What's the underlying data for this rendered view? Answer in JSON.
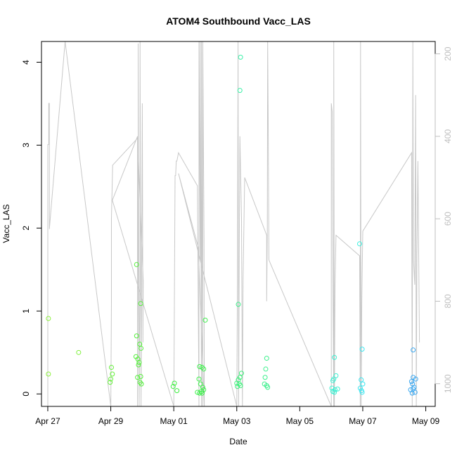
{
  "chart_data": {
    "type": "scatter",
    "title": "ATOM4 Southbound Vacc_LAS",
    "xlabel": "Date",
    "ylabel": "Vacc_LAS",
    "xlim": [
      -0.2,
      12.3
    ],
    "ylim": [
      -0.15,
      4.25
    ],
    "x_unit": "days since Apr 27",
    "x_ticks": [
      {
        "value": 0,
        "label": "Apr 27"
      },
      {
        "value": 2,
        "label": "Apr 29"
      },
      {
        "value": 4,
        "label": "May 01"
      },
      {
        "value": 6,
        "label": "May 03"
      },
      {
        "value": 8,
        "label": "May 05"
      },
      {
        "value": 10,
        "label": "May 07"
      },
      {
        "value": 12,
        "label": "May 09"
      }
    ],
    "y_ticks": [
      {
        "value": 0,
        "label": "0"
      },
      {
        "value": 1,
        "label": "1"
      },
      {
        "value": 2,
        "label": "2"
      },
      {
        "value": 3,
        "label": "3"
      },
      {
        "value": 4,
        "label": "4"
      }
    ],
    "secondary_axis": {
      "side": "right",
      "reversed": true,
      "color": "#bfbfbf",
      "ylim": [
        1055,
        170
      ],
      "ticks": [
        {
          "value": 200,
          "label": "200"
        },
        {
          "value": 400,
          "label": "400"
        },
        {
          "value": 600,
          "label": "600"
        },
        {
          "value": 800,
          "label": "800"
        },
        {
          "value": 1000,
          "label": "1000"
        }
      ]
    },
    "series": [
      {
        "name": "Vacc_LAS",
        "mark": "open-circle",
        "colored_by": "time",
        "points": [
          {
            "x": 0.02,
            "y": 0.91,
            "color": "#8cf03c"
          },
          {
            "x": 0.02,
            "y": 0.24,
            "color": "#8cf03c"
          },
          {
            "x": 0.98,
            "y": 0.5,
            "color": "#7ff03c"
          },
          {
            "x": 2.02,
            "y": 0.32,
            "color": "#66f03c"
          },
          {
            "x": 2.05,
            "y": 0.24,
            "color": "#66f03c"
          },
          {
            "x": 2.0,
            "y": 0.18,
            "color": "#66f03c"
          },
          {
            "x": 1.98,
            "y": 0.14,
            "color": "#66f03c"
          },
          {
            "x": 2.82,
            "y": 1.56,
            "color": "#55f03c"
          },
          {
            "x": 2.82,
            "y": 0.7,
            "color": "#55f03c"
          },
          {
            "x": 2.8,
            "y": 0.45,
            "color": "#55f03c"
          },
          {
            "x": 2.86,
            "y": 0.42,
            "color": "#55f03c"
          },
          {
            "x": 2.9,
            "y": 0.38,
            "color": "#55f03c"
          },
          {
            "x": 2.88,
            "y": 0.35,
            "color": "#55f03c"
          },
          {
            "x": 2.92,
            "y": 0.6,
            "color": "#55f03c"
          },
          {
            "x": 2.96,
            "y": 0.55,
            "color": "#55f03c"
          },
          {
            "x": 2.95,
            "y": 1.09,
            "color": "#55f03c"
          },
          {
            "x": 2.85,
            "y": 0.2,
            "color": "#55f03c"
          },
          {
            "x": 2.95,
            "y": 0.21,
            "color": "#55f03c"
          },
          {
            "x": 2.93,
            "y": 0.14,
            "color": "#55f03c"
          },
          {
            "x": 2.97,
            "y": 0.12,
            "color": "#55f03c"
          },
          {
            "x": 4.02,
            "y": 0.13,
            "color": "#3cf03f"
          },
          {
            "x": 3.98,
            "y": 0.09,
            "color": "#3cf03f"
          },
          {
            "x": 4.1,
            "y": 0.04,
            "color": "#3cf03f"
          },
          {
            "x": 4.82,
            "y": 0.33,
            "color": "#3cf04a"
          },
          {
            "x": 4.95,
            "y": 0.3,
            "color": "#3cf04a"
          },
          {
            "x": 4.9,
            "y": 0.32,
            "color": "#3cf04a"
          },
          {
            "x": 4.8,
            "y": 0.18,
            "color": "#3cf04a"
          },
          {
            "x": 4.85,
            "y": 0.12,
            "color": "#3cf04a"
          },
          {
            "x": 4.92,
            "y": 0.08,
            "color": "#3cf04a"
          },
          {
            "x": 4.75,
            "y": 0.02,
            "color": "#3cf04a"
          },
          {
            "x": 4.82,
            "y": 0.01,
            "color": "#3cf04a"
          },
          {
            "x": 4.88,
            "y": 0.03,
            "color": "#3cf04a"
          },
          {
            "x": 4.95,
            "y": 0.05,
            "color": "#3cf04a"
          },
          {
            "x": 4.9,
            "y": 0.01,
            "color": "#3cf04a"
          },
          {
            "x": 5.0,
            "y": 0.89,
            "color": "#3cf04a"
          },
          {
            "x": 6.12,
            "y": 4.06,
            "color": "#3cf0a8"
          },
          {
            "x": 6.1,
            "y": 3.66,
            "color": "#3cf0a8"
          },
          {
            "x": 6.05,
            "y": 1.08,
            "color": "#3cf08a"
          },
          {
            "x": 6.15,
            "y": 0.25,
            "color": "#3cf07a"
          },
          {
            "x": 6.1,
            "y": 0.2,
            "color": "#3cf07a"
          },
          {
            "x": 6.05,
            "y": 0.17,
            "color": "#3cf07a"
          },
          {
            "x": 6.0,
            "y": 0.13,
            "color": "#3cf07a"
          },
          {
            "x": 6.08,
            "y": 0.12,
            "color": "#3cf07a"
          },
          {
            "x": 6.12,
            "y": 0.1,
            "color": "#3cf07a"
          },
          {
            "x": 6.02,
            "y": 0.09,
            "color": "#3cf07a"
          },
          {
            "x": 6.95,
            "y": 0.43,
            "color": "#3cf08c"
          },
          {
            "x": 6.92,
            "y": 0.3,
            "color": "#3cf08c"
          },
          {
            "x": 6.9,
            "y": 0.2,
            "color": "#3cf08c"
          },
          {
            "x": 6.88,
            "y": 0.12,
            "color": "#3cf08c"
          },
          {
            "x": 6.95,
            "y": 0.1,
            "color": "#3cf08c"
          },
          {
            "x": 6.98,
            "y": 0.08,
            "color": "#3cf08c"
          },
          {
            "x": 9.1,
            "y": 0.44,
            "color": "#3cf0d2"
          },
          {
            "x": 9.15,
            "y": 0.22,
            "color": "#3cf0d2"
          },
          {
            "x": 9.08,
            "y": 0.18,
            "color": "#3cf0d2"
          },
          {
            "x": 9.05,
            "y": 0.16,
            "color": "#3cf0d2"
          },
          {
            "x": 9.02,
            "y": 0.07,
            "color": "#3cf0d2"
          },
          {
            "x": 9.12,
            "y": 0.05,
            "color": "#3cf0d2"
          },
          {
            "x": 9.2,
            "y": 0.06,
            "color": "#3cf0d2"
          },
          {
            "x": 9.05,
            "y": 0.03,
            "color": "#3cf0d2"
          },
          {
            "x": 9.1,
            "y": 0.02,
            "color": "#3cf0d2"
          },
          {
            "x": 9.9,
            "y": 1.81,
            "color": "#3cf0e0"
          },
          {
            "x": 9.98,
            "y": 0.54,
            "color": "#3ce6f0"
          },
          {
            "x": 9.95,
            "y": 0.17,
            "color": "#3ce6f0"
          },
          {
            "x": 10.0,
            "y": 0.12,
            "color": "#3ce6f0"
          },
          {
            "x": 9.92,
            "y": 0.07,
            "color": "#3ce6f0"
          },
          {
            "x": 9.96,
            "y": 0.04,
            "color": "#3ce6f0"
          },
          {
            "x": 9.98,
            "y": 0.02,
            "color": "#3ce6f0"
          },
          {
            "x": 11.6,
            "y": 0.53,
            "color": "#3ca8f0"
          },
          {
            "x": 11.6,
            "y": 0.2,
            "color": "#3ca8f0"
          },
          {
            "x": 11.68,
            "y": 0.18,
            "color": "#3ca8f0"
          },
          {
            "x": 11.55,
            "y": 0.15,
            "color": "#3ca8f0"
          },
          {
            "x": 11.58,
            "y": 0.12,
            "color": "#3ca8f0"
          },
          {
            "x": 11.63,
            "y": 0.08,
            "color": "#3ca8f0"
          },
          {
            "x": 11.52,
            "y": 0.05,
            "color": "#3ca8f0"
          },
          {
            "x": 11.6,
            "y": 0.06,
            "color": "#3ca8f0"
          },
          {
            "x": 11.57,
            "y": 0.01,
            "color": "#3ca8f0"
          },
          {
            "x": 11.66,
            "y": 0.02,
            "color": "#3ca8f0"
          }
        ]
      },
      {
        "name": "secondary trace (right axis)",
        "mark": "line",
        "axis": "right",
        "color": "#c8c8c8",
        "points": [
          [
            0.0,
            1055
          ],
          [
            0.0,
            420
          ],
          [
            0.03,
            420
          ],
          [
            0.03,
            320
          ],
          [
            0.05,
            320
          ],
          [
            0.05,
            625
          ],
          [
            0.55,
            170
          ],
          [
            2.0,
            1055
          ],
          [
            2.02,
            800
          ],
          [
            2.02,
            600
          ],
          [
            2.06,
            470
          ],
          [
            2.85,
            405
          ],
          [
            2.85,
            1055
          ],
          [
            2.87,
            650
          ],
          [
            2.87,
            175
          ],
          [
            2.9,
            1055
          ],
          [
            2.93,
            700
          ],
          [
            2.93,
            170
          ],
          [
            2.96,
            1055
          ],
          [
            2.98,
            700
          ],
          [
            3.0,
            320
          ],
          [
            3.02,
            900
          ],
          [
            3.03,
            750
          ],
          [
            2.85,
            400
          ],
          [
            2.05,
            555
          ],
          [
            4.0,
            1055
          ],
          [
            4.02,
            780
          ],
          [
            4.04,
            495
          ],
          [
            4.06,
            495
          ],
          [
            4.08,
            460
          ],
          [
            4.1,
            460
          ],
          [
            4.15,
            440
          ],
          [
            4.75,
            520
          ],
          [
            4.8,
            1055
          ],
          [
            4.8,
            170
          ],
          [
            4.84,
            700
          ],
          [
            4.84,
            170
          ],
          [
            4.88,
            1055
          ],
          [
            4.88,
            170
          ],
          [
            4.92,
            1055
          ],
          [
            4.92,
            170
          ],
          [
            4.96,
            650
          ],
          [
            4.97,
            1055
          ],
          [
            4.78,
            670
          ],
          [
            4.15,
            490
          ],
          [
            6.0,
            1055
          ],
          [
            6.02,
            750
          ],
          [
            6.04,
            170
          ],
          [
            6.06,
            1055
          ],
          [
            6.08,
            680
          ],
          [
            6.1,
            400
          ],
          [
            6.15,
            600
          ],
          [
            6.18,
            1055
          ],
          [
            6.2,
            750
          ],
          [
            6.25,
            500
          ],
          [
            6.95,
            640
          ],
          [
            6.95,
            800
          ],
          [
            6.97,
            630
          ],
          [
            6.98,
            170
          ],
          [
            7.0,
            400
          ],
          [
            7.02,
            700
          ],
          [
            9.0,
            1055
          ],
          [
            9.0,
            320
          ],
          [
            9.03,
            340
          ],
          [
            9.05,
            750
          ],
          [
            9.08,
            1055
          ],
          [
            9.08,
            170
          ],
          [
            9.1,
            1055
          ],
          [
            9.12,
            760
          ],
          [
            9.15,
            640
          ],
          [
            9.9,
            690
          ],
          [
            9.92,
            1055
          ],
          [
            9.93,
            170
          ],
          [
            9.95,
            1055
          ],
          [
            9.97,
            800
          ],
          [
            10.0,
            630
          ],
          [
            11.55,
            440
          ],
          [
            11.57,
            1055
          ],
          [
            11.59,
            170
          ],
          [
            11.61,
            700
          ],
          [
            11.65,
            760
          ],
          [
            11.68,
            300
          ],
          [
            11.7,
            1055
          ],
          [
            11.72,
            690
          ],
          [
            11.75,
            460
          ],
          [
            11.8,
            900
          ]
        ]
      }
    ]
  }
}
